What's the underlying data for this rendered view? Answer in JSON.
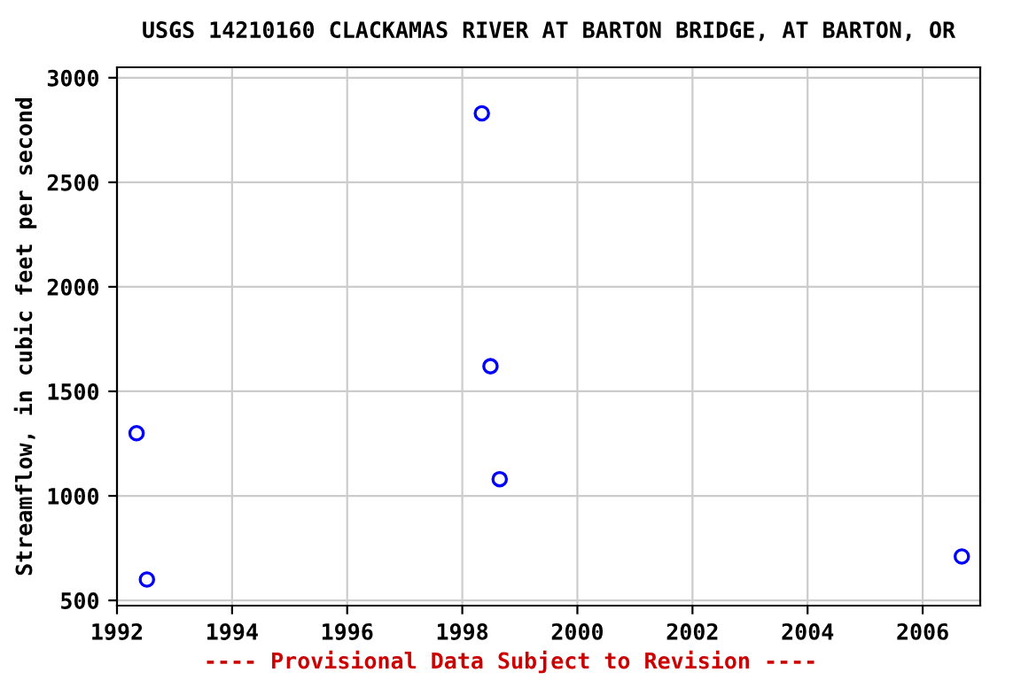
{
  "chart_data": {
    "type": "scatter",
    "title": "USGS 14210160 CLACKAMAS RIVER AT BARTON BRIDGE, AT BARTON, OR",
    "ylabel": "Streamflow, in cubic feet per second",
    "x": [
      1992.34,
      1992.52,
      1998.34,
      1998.49,
      1998.65,
      2006.68
    ],
    "series": [
      {
        "color": "#0000ff",
        "values": [
          1300,
          600,
          2830,
          1620,
          1080,
          710
        ]
      }
    ],
    "xlim": [
      1992,
      2007
    ],
    "xticks": [
      1992,
      1994,
      1996,
      1998,
      2000,
      2002,
      2004,
      2006
    ],
    "ylim": [
      475,
      3050
    ],
    "yticks": [
      500,
      1000,
      1500,
      2000,
      2500,
      3000
    ],
    "grid": true,
    "marker": "circle",
    "annotations": [
      "---- Provisional Data Subject to Revision ----"
    ]
  }
}
